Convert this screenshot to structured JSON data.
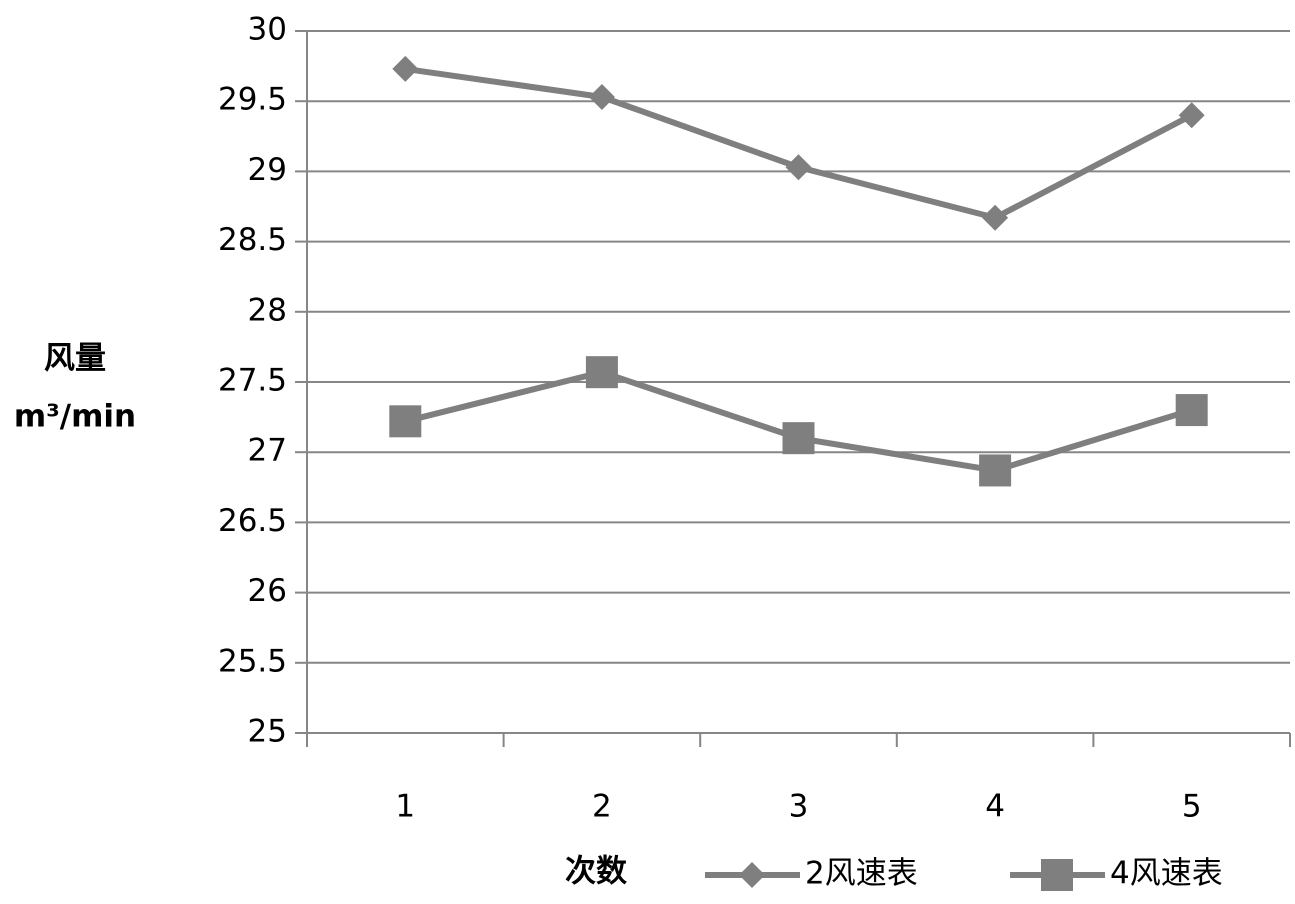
{
  "chart_data": {
    "type": "line",
    "y_label": "风量",
    "y_unit": "m³/min",
    "x_label": "次数",
    "categories": [
      "1",
      "2",
      "3",
      "4",
      "5"
    ],
    "series": [
      {
        "name": "2风速表",
        "color": "#7f7f7f",
        "marker": "diamond",
        "values": [
          29.73,
          29.53,
          29.03,
          28.67,
          29.4
        ]
      },
      {
        "name": "4风速表",
        "color": "#7f7f7f",
        "marker": "square",
        "values": [
          27.22,
          27.57,
          27.1,
          26.87,
          27.3
        ]
      }
    ],
    "ylim": [
      25,
      30
    ],
    "yticks": [
      25,
      25.5,
      26,
      26.5,
      27,
      27.5,
      28,
      28.5,
      29,
      29.5,
      30
    ],
    "grid": true,
    "legend": "bottom"
  }
}
